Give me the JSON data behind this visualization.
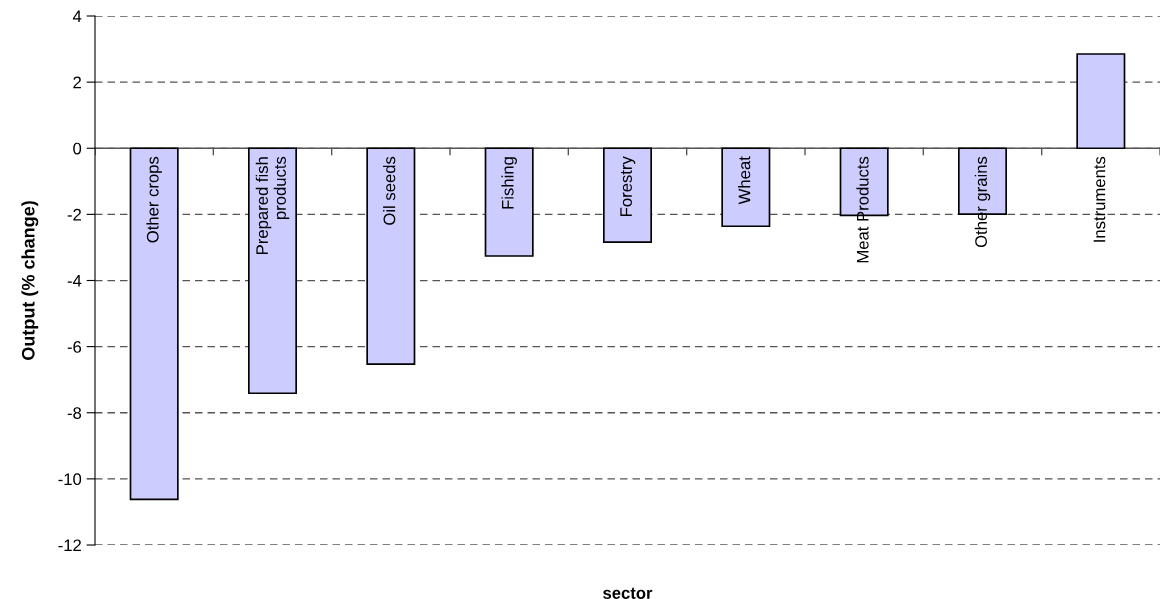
{
  "chart_data": {
    "type": "bar",
    "xlabel": "sector",
    "ylabel": "Output (% change)",
    "categories": [
      "Other crops",
      "Prepared fish products",
      "Oil seeds",
      "Fishing",
      "Forestry",
      "Wheat",
      "Meat Products",
      "Other grains",
      "Instruments"
    ],
    "values": [
      -10.62,
      -7.41,
      -6.53,
      -3.26,
      -2.84,
      -2.36,
      -2.03,
      -1.99,
      2.85
    ],
    "color": "#ccccff",
    "ylim": [
      -12,
      4
    ],
    "yticks": [
      -12,
      -10,
      -8,
      -6,
      -4,
      -2,
      0,
      2,
      4
    ],
    "grid": "y",
    "legend": false
  }
}
